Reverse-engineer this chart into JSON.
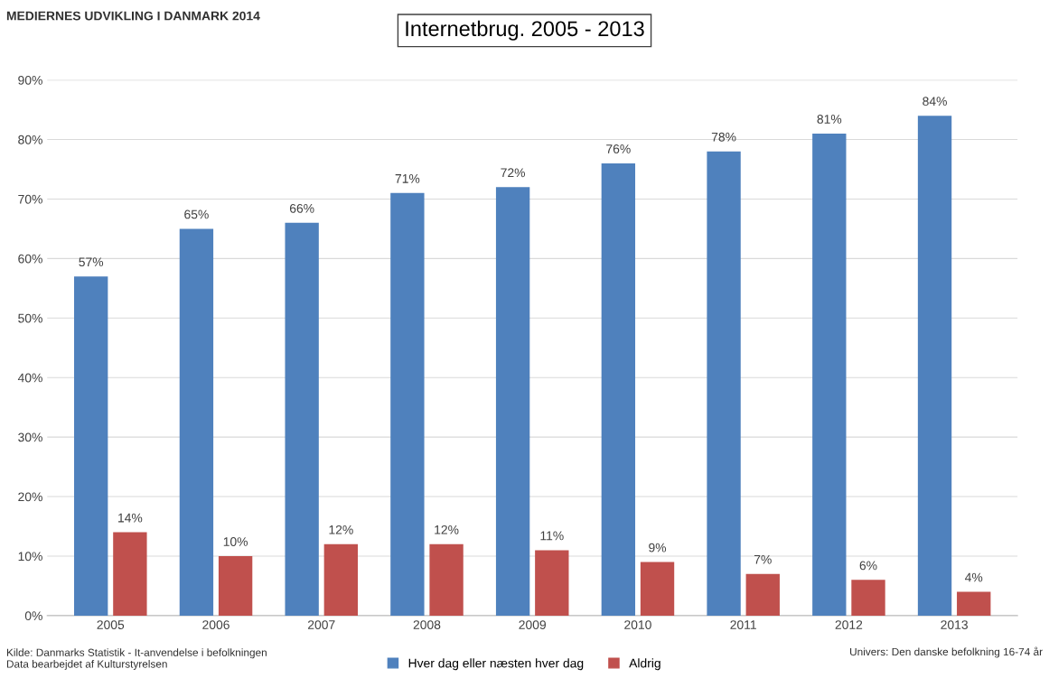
{
  "chart_data": {
    "type": "bar",
    "title": "Internetbrug. 2005 - 2013",
    "categories": [
      "2005",
      "2006",
      "2007",
      "2008",
      "2009",
      "2010",
      "2011",
      "2012",
      "2013"
    ],
    "series": [
      {
        "name": "Hver dag eller næsten hver dag",
        "color": "#4f81bd",
        "values": [
          57,
          65,
          66,
          71,
          72,
          76,
          78,
          81,
          84
        ],
        "value_labels": [
          "57%",
          "65%",
          "66%",
          "71%",
          "72%",
          "76%",
          "78%",
          "81%",
          "84%"
        ]
      },
      {
        "name": "Aldrig",
        "color": "#c0504d",
        "values": [
          14,
          10,
          12,
          12,
          11,
          9,
          7,
          6,
          4
        ],
        "value_labels": [
          "14%",
          "10%",
          "12%",
          "12%",
          "11%",
          "9%",
          "7%",
          "6%",
          "4%"
        ]
      }
    ],
    "ylim": [
      0,
      90
    ],
    "yticks": [
      {
        "value": 0,
        "label": "0%"
      },
      {
        "value": 10,
        "label": "10%"
      },
      {
        "value": 20,
        "label": "20%"
      },
      {
        "value": 30,
        "label": "30%"
      },
      {
        "value": 40,
        "label": "40%"
      },
      {
        "value": 50,
        "label": "50%"
      },
      {
        "value": 60,
        "label": "60%"
      },
      {
        "value": 70,
        "label": "70%"
      },
      {
        "value": 80,
        "label": "80%"
      },
      {
        "value": 90,
        "label": "90%"
      }
    ],
    "grid": "y",
    "legend": "bottom",
    "annotations": [
      "MEDIERNES UDVIKLING I DANMARK 2014",
      "Kilde: Danmarks Statistik - It-anvendelse i befolkningen\nData bearbejdet af Kulturstyrelsen",
      "Univers: Den danske befolkning 16-74 år"
    ]
  }
}
